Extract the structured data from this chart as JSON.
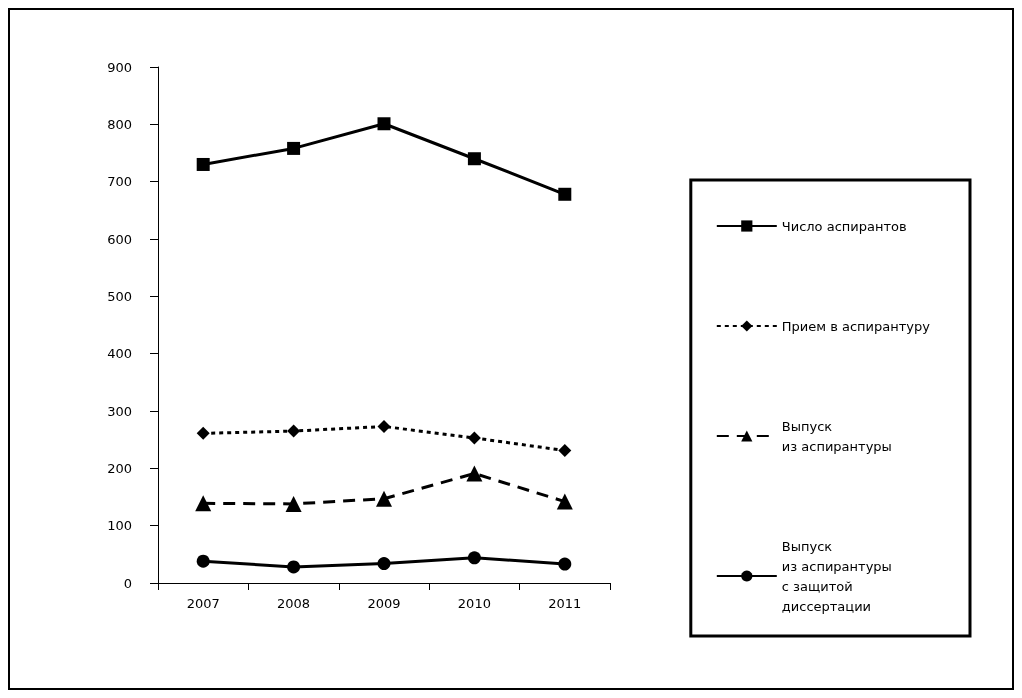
{
  "chart_data": {
    "type": "line",
    "categories": [
      "2007",
      "2008",
      "2009",
      "2010",
      "2011"
    ],
    "series": [
      {
        "name": "Число аспирантов",
        "color": "#000000",
        "marker": "square",
        "line_style": "solid",
        "values": [
          730,
          758,
          801,
          740,
          678
        ]
      },
      {
        "name": "Прием в аспирантуру",
        "color": "#000000",
        "marker": "diamond",
        "line_style": "dotted",
        "values": [
          261,
          265,
          273,
          253,
          231
        ]
      },
      {
        "name": "Выпуск\nиз аспирантуры",
        "color": "#000000",
        "marker": "triangle",
        "line_style": "dashed",
        "values": [
          139,
          138,
          147,
          191,
          142
        ]
      },
      {
        "name": "Выпуск\nиз аспирантуры\nс защитой\nдиссертации",
        "color": "#000000",
        "marker": "circle",
        "line_style": "solid",
        "values": [
          38,
          28,
          34,
          44,
          33
        ]
      }
    ],
    "ylim": [
      0,
      900
    ],
    "yticks": [
      0,
      100,
      200,
      300,
      400,
      500,
      600,
      700,
      800,
      900
    ],
    "grid": false,
    "legend": "right"
  }
}
